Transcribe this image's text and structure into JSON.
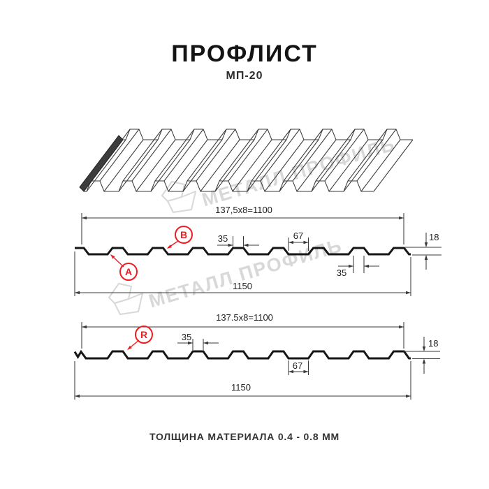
{
  "header": {
    "title": "ПРОФЛИСТ",
    "subtitle": "МП-20"
  },
  "footer": {
    "text": "ТОЛЩИНА МАТЕРИАЛА 0.4 - 0.8 ММ"
  },
  "watermark": {
    "brand": "МЕТАЛЛ ПРОФИЛЬ"
  },
  "colors": {
    "accent": "#ee1c23",
    "line": "#161616",
    "watermark": "#d8d8d8"
  },
  "profile_top": {
    "pitch_formula": "137,5x8=1100",
    "rib_top_width": "35",
    "valley_width": "67",
    "profile_height": "18",
    "rib_base_width": "35",
    "overall_width": "1150",
    "marker_a": "A",
    "marker_b": "B"
  },
  "profile_bottom": {
    "pitch_formula": "137.5x8=1100",
    "rib_top_width": "35",
    "valley_width": "67",
    "profile_height": "18",
    "overall_width": "1150",
    "marker_r": "R"
  }
}
